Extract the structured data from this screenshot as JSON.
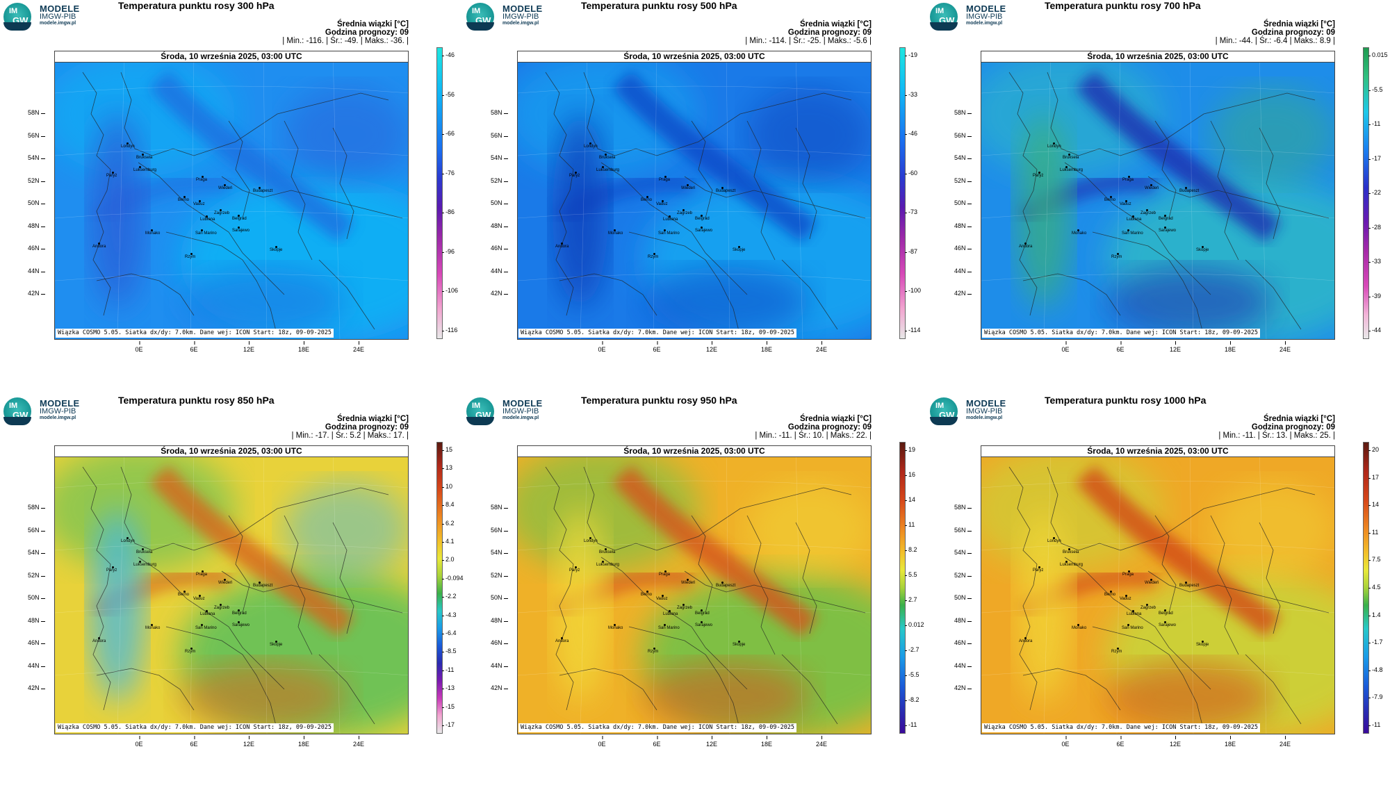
{
  "brand": {
    "name": "MODELE",
    "org": "IMGW-PIB",
    "url": "modele.imgw.pl",
    "logo_top": "IM",
    "logo_bottom": "GW"
  },
  "common": {
    "date": "Środa, 10 września 2025, 03:00 UTC",
    "credit": "Wiązka COSMO 5.05. Siatka dx/dy: 7.0km. Dane wej: ICON Start: 18z, 09-09-2025",
    "mean_label": "Średnia wiązki [°C]",
    "forecast_hour": "Godzina prognozy: 09",
    "lat_labels": [
      "58N",
      "56N",
      "54N",
      "52N",
      "50N",
      "48N",
      "46N",
      "44N",
      "42N"
    ],
    "lon_labels": [
      "0E",
      "6E",
      "12E",
      "18E",
      "24E"
    ],
    "cities": [
      "Londyn",
      "Bruksela",
      "Paryż",
      "Luksemburg",
      "Praga",
      "Wiedeń",
      "Budapeszt",
      "Berno",
      "Vaduz",
      "Zagrzeb",
      "Lublana",
      "Belgrad",
      "San Marino",
      "Monako",
      "Sarajewo",
      "Andora",
      "Rzym",
      "Skopje"
    ]
  },
  "panels": [
    {
      "title": "Temperatura punktu rosy 300 hPa",
      "stats": "| Min.:  -116. | Śr.:  -49. | Maks.:  -36. |",
      "scale": [
        "-46",
        "-56",
        "-66",
        "-76",
        "-86",
        "-96",
        "-106",
        "-116"
      ],
      "colors": {
        "base": "#1f8ef0",
        "c1": "#0fb4f5",
        "c2": "#1a6fe0",
        "c3": "#2a5bd6"
      }
    },
    {
      "title": "Temperatura punktu rosy 500 hPa",
      "stats": "| Min.:  -114. | Śr.:  -25. | Maks.:  -5.6 |",
      "scale": [
        "-19",
        "-33",
        "-46",
        "-60",
        "-73",
        "-87",
        "-100",
        "-114"
      ],
      "colors": {
        "base": "#1a7ae8",
        "c1": "#12a7f2",
        "c2": "#1048c8",
        "c3": "#0c3cb8"
      }
    },
    {
      "title": "Temperatura punktu rosy 700 hPa",
      "stats": "| Min.:  -44. | Śr.:  -6.4 | Maks.:  8.9 |",
      "scale": [
        "0.015",
        "-5.5",
        "-11",
        "-17",
        "-22",
        "-28",
        "-33",
        "-39",
        "-44"
      ],
      "colors": {
        "base": "#1e8de9",
        "c1": "#2fb8c8",
        "c2": "#1a2fb0",
        "c3": "#3ab07a"
      }
    },
    {
      "title": "Temperatura punktu rosy 850 hPa",
      "stats": "| Min.:  -17. | Śr.:  5.2 | Maks.:  17. |",
      "scale": [
        "15",
        "13",
        "10",
        "8.4",
        "6.2",
        "4.1",
        "2.0",
        "-0.094",
        "-2.2",
        "-4.3",
        "-6.4",
        "-8.5",
        "-11",
        "-13",
        "-15",
        "-17"
      ],
      "colors": {
        "base": "#e8d23a",
        "c1": "#5cc05a",
        "c2": "#d6661a",
        "c3": "#3fb8e8"
      }
    },
    {
      "title": "Temperatura punktu rosy 950 hPa",
      "stats": "| Min.:  -11. | Śr.:  10. | Maks.:  22. |",
      "scale": [
        "19",
        "16",
        "14",
        "11",
        "8.2",
        "5.5",
        "2.7",
        "0.012",
        "-2.7",
        "-5.5",
        "-8.2",
        "-11"
      ],
      "colors": {
        "base": "#efb128",
        "c1": "#6cc24a",
        "c2": "#d4541a",
        "c3": "#f2dc3a"
      }
    },
    {
      "title": "Temperatura punktu rosy 1000 hPa",
      "stats": "| Min.:  -11. | Śr.:  13. | Maks.:  25. |",
      "scale": [
        "20",
        "17",
        "14",
        "11",
        "7.5",
        "4.5",
        "1.4",
        "-1.7",
        "-4.8",
        "-7.9",
        "-11"
      ],
      "colors": {
        "base": "#efa826",
        "c1": "#c8d63a",
        "c2": "#d24a18",
        "c3": "#f2d838"
      }
    }
  ]
}
